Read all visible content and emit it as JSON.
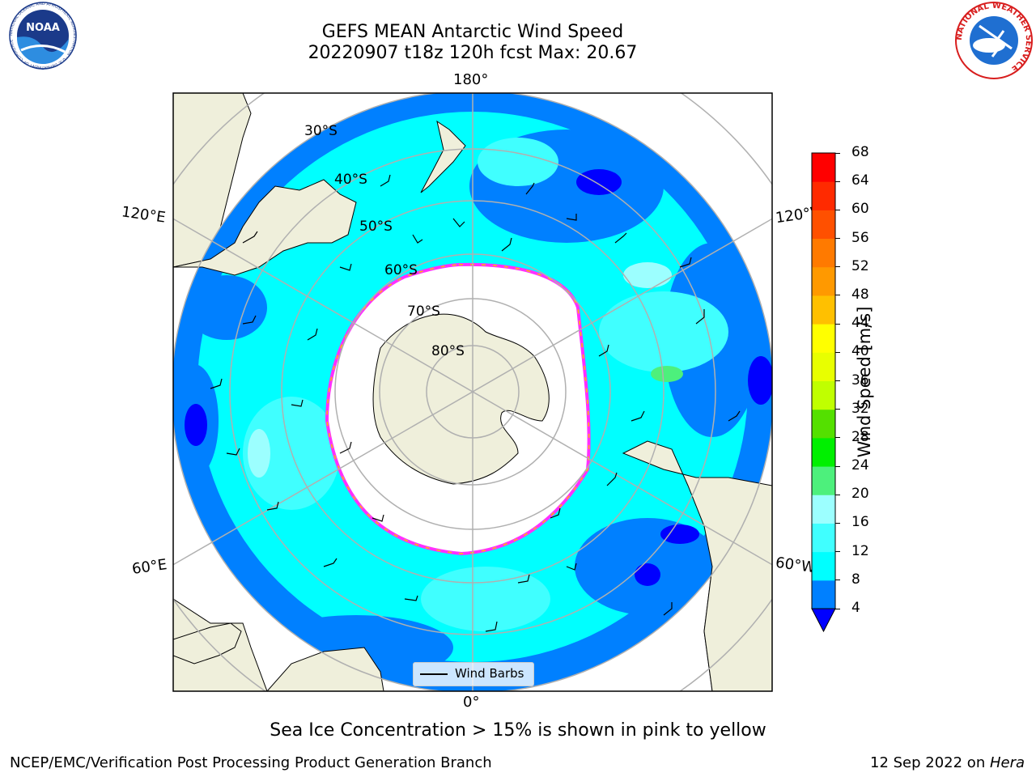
{
  "title": {
    "line1": "GEFS MEAN Antarctic Wind Speed",
    "line2": "20220907 t18z 120h fcst   Max: 20.67"
  },
  "map": {
    "projection": "south-polar-stereographic",
    "lon_labels": {
      "top": "180°",
      "bottom": "0°",
      "left_upper": "120°E",
      "right_upper": "120°W",
      "left_lower": "60°E",
      "right_lower": "60°W"
    },
    "lat_labels": [
      "30°S",
      "40°S",
      "50°S",
      "60°S",
      "70°S",
      "80°S"
    ],
    "legend": {
      "label": "Wind Barbs"
    },
    "colors": {
      "land": "#efefdb",
      "ice_free_interior": "#ffffff",
      "gridline": "#b0b0b0",
      "ice_edge": "#ff30ff"
    }
  },
  "colorbar": {
    "label": "Wind Speed [m/s]",
    "ticks": [
      "4",
      "8",
      "12",
      "16",
      "20",
      "24",
      "28",
      "32",
      "36",
      "40",
      "44",
      "48",
      "52",
      "56",
      "60",
      "64",
      "68"
    ],
    "colors": [
      "#0000ff",
      "#0080ff",
      "#00ffff",
      "#40ffff",
      "#9cffff",
      "#4df07c",
      "#00f000",
      "#54e000",
      "#c0ff00",
      "#e8ff00",
      "#ffff00",
      "#ffc000",
      "#ff9900",
      "#ff7a00",
      "#ff5000",
      "#ff2a00",
      "#ff0000"
    ],
    "extend": "min"
  },
  "caption": "Sea Ice Concentration > 15% is shown in pink to yellow",
  "footer": {
    "left": "NCEP/EMC/Verification Post Processing Product Generation Branch",
    "right_date": "12 Sep 2022 on ",
    "right_host": "Hera"
  },
  "logos": {
    "noaa": {
      "text": "NOAA",
      "ring": "NATIONAL OCEANIC AND ATMOSPHERIC ADMINISTRATION · U.S. DEPARTMENT OF COMMERCE"
    },
    "nws": {
      "ring": "NATIONAL WEATHER SERVICE"
    }
  }
}
